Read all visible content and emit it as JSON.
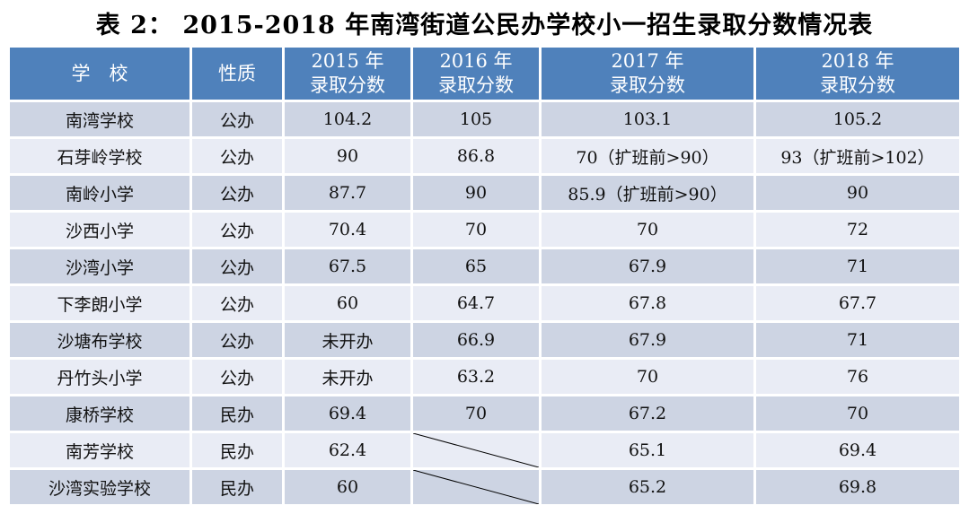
{
  "title": "表 2：  2015-2018 年南湾街道公民办学校小一招生录取分数情况表",
  "colors": {
    "header_bg": "#4f81bb",
    "row_dark": "#cdd4e3",
    "row_light": "#e9ecf5"
  },
  "table": {
    "columns": [
      {
        "title": "学　校",
        "subtitle": ""
      },
      {
        "title": "性质",
        "subtitle": ""
      },
      {
        "title": "2015 年",
        "subtitle": "录取分数"
      },
      {
        "title": "2016 年",
        "subtitle": "录取分数"
      },
      {
        "title": "2017 年",
        "subtitle": "录取分数"
      },
      {
        "title": "2018 年",
        "subtitle": "录取分数"
      }
    ],
    "crossed_out_marker": "diagonal-slash",
    "rows": [
      {
        "cells": [
          "南湾学校",
          "公办",
          "104.2",
          "105",
          "103.1",
          "105.2"
        ]
      },
      {
        "cells": [
          "石芽岭学校",
          "公办",
          "90",
          "86.8",
          "70（扩班前>90）",
          "93（扩班前>102）"
        ]
      },
      {
        "cells": [
          "南岭小学",
          "公办",
          "87.7",
          "90",
          "85.9（扩班前>90）",
          "90"
        ]
      },
      {
        "cells": [
          "沙西小学",
          "公办",
          "70.4",
          "70",
          "70",
          "72"
        ]
      },
      {
        "cells": [
          "沙湾小学",
          "公办",
          "67.5",
          "65",
          "67.9",
          "71"
        ]
      },
      {
        "cells": [
          "下李朗小学",
          "公办",
          "60",
          "64.7",
          "67.8",
          "67.7"
        ]
      },
      {
        "cells": [
          "沙塘布学校",
          "公办",
          "未开办",
          "66.9",
          "67.9",
          "71"
        ]
      },
      {
        "cells": [
          "丹竹头小学",
          "公办",
          "未开办",
          "63.2",
          "70",
          "76"
        ]
      },
      {
        "cells": [
          "康桥学校",
          "民办",
          "69.4",
          "70",
          "67.2",
          "70"
        ]
      },
      {
        "cells": [
          "南芳学校",
          "民办",
          "62.4",
          null,
          "65.1",
          "69.4"
        ]
      },
      {
        "cells": [
          "沙湾实验学校",
          "民办",
          "60",
          null,
          "65.2",
          "69.8"
        ]
      }
    ]
  }
}
